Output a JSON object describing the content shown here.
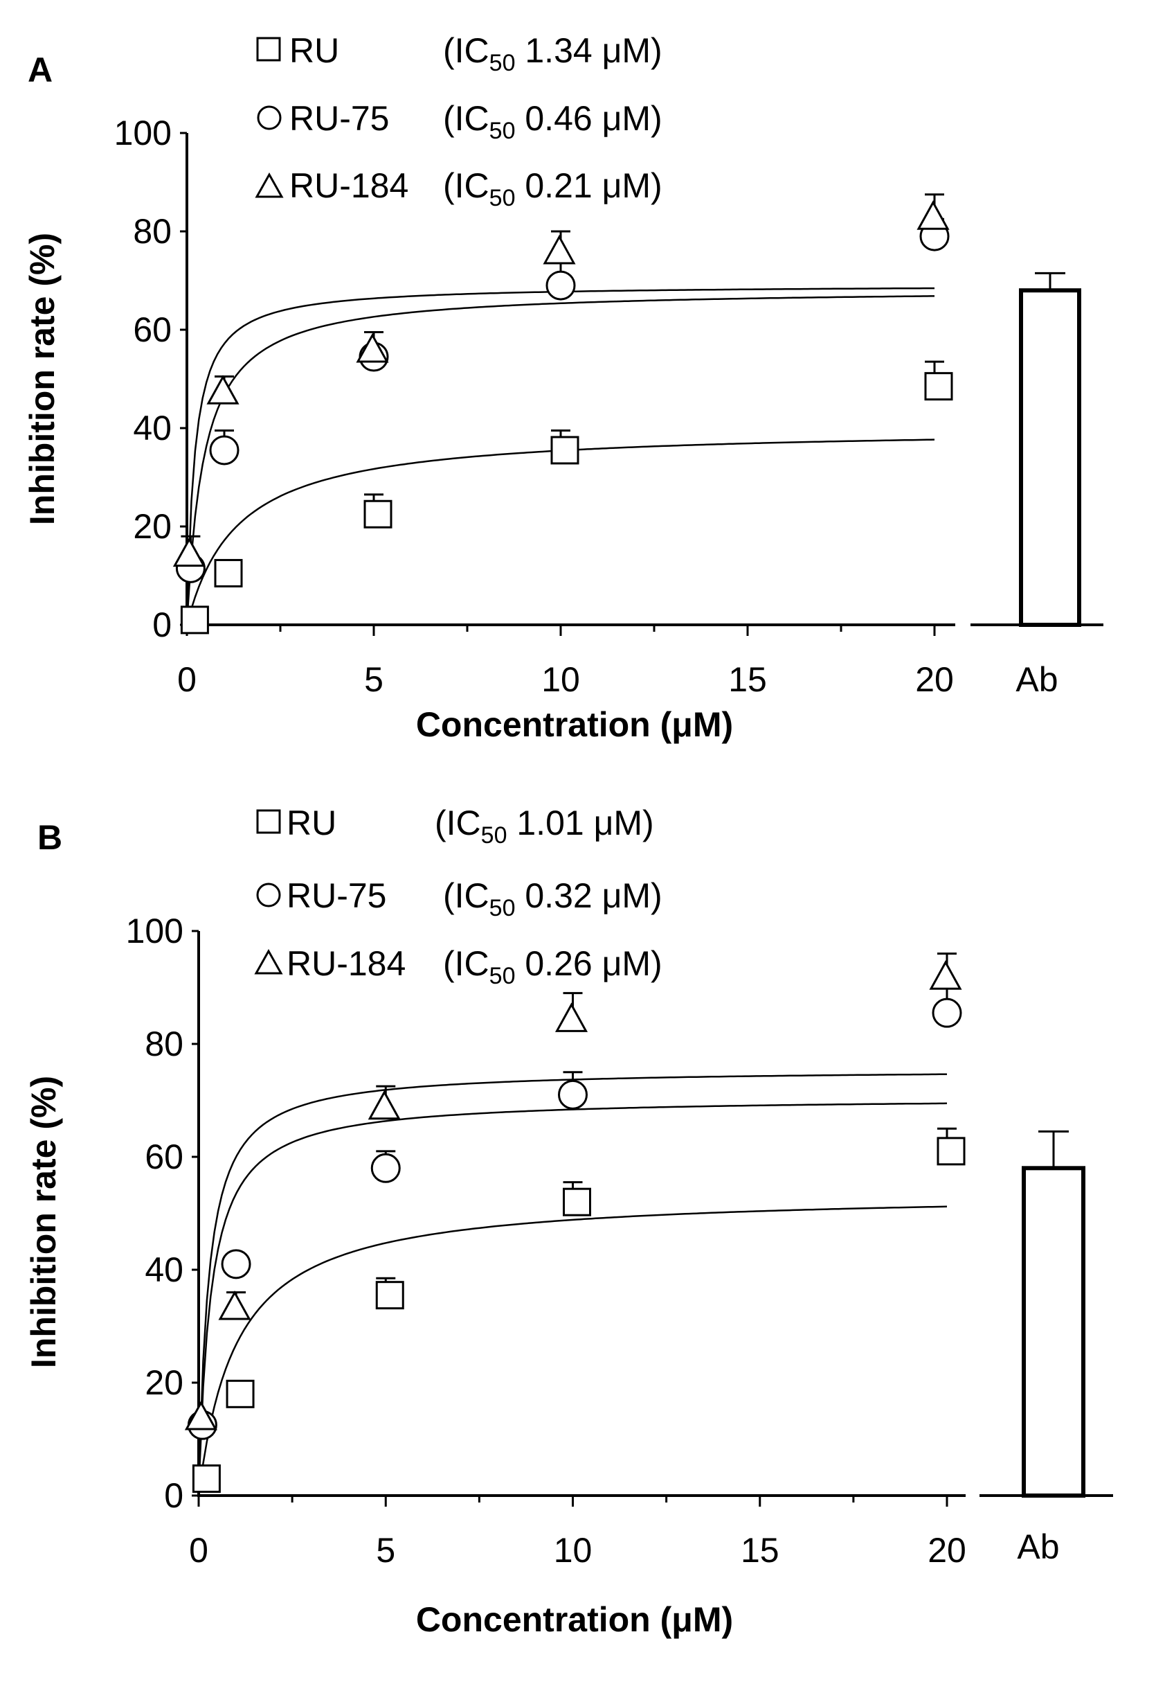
{
  "chart_data": [
    {
      "panel": "A",
      "type": "scatter",
      "xlabel": "Concentration (μM)",
      "ylabel": "Inhibition rate (%)",
      "xlim": [
        0,
        20
      ],
      "ylim": [
        0,
        100
      ],
      "x_ticks": [
        "0",
        "5",
        "10",
        "15",
        "20"
      ],
      "y_ticks": [
        "0",
        "20",
        "40",
        "60",
        "80",
        "100"
      ],
      "series": [
        {
          "name": "RU",
          "marker": "square",
          "ic50_label": "(IC",
          "ic50_sub": "50",
          "ic50_value": " 1.34 μM)",
          "ic50": 1.34,
          "x": [
            0.1,
            1,
            5,
            10,
            20
          ],
          "y": [
            1,
            10.5,
            22.5,
            35.5,
            48.5
          ],
          "err": [
            0,
            0,
            4,
            4,
            5
          ]
        },
        {
          "name": "RU-75",
          "marker": "circle",
          "ic50_label": "(IC",
          "ic50_sub": "50",
          "ic50_value": " 0.46 μM)",
          "ic50": 0.46,
          "x": [
            0.1,
            1,
            5,
            10,
            20
          ],
          "y": [
            11.5,
            35.5,
            54.5,
            69,
            79
          ],
          "err": [
            0,
            4,
            5,
            5,
            3.5
          ]
        },
        {
          "name": "RU-184",
          "marker": "triangle",
          "ic50_label": "(IC",
          "ic50_sub": "50",
          "ic50_value": " 0.21 μM)",
          "ic50": 0.21,
          "x": [
            0.1,
            1,
            5,
            10,
            20
          ],
          "y": [
            14,
            47,
            55.5,
            75.5,
            82.5
          ],
          "err": [
            4,
            3.5,
            4,
            4.5,
            5
          ]
        }
      ],
      "reference_bar": {
        "label": "Ab",
        "value": 68,
        "err": 3.5
      }
    },
    {
      "panel": "B",
      "type": "scatter",
      "xlabel": "Concentration (μM)",
      "ylabel": "Inhibition rate (%)",
      "xlim": [
        0,
        20
      ],
      "ylim": [
        0,
        100
      ],
      "x_ticks": [
        "0",
        "5",
        "10",
        "15",
        "20"
      ],
      "y_ticks": [
        "0",
        "20",
        "40",
        "60",
        "80",
        "100"
      ],
      "series": [
        {
          "name": "RU",
          "marker": "square",
          "ic50_label": "(IC",
          "ic50_sub": "50",
          "ic50_value": " 1.01 μM)",
          "ic50": 1.01,
          "x": [
            0.1,
            1,
            5,
            10,
            20
          ],
          "y": [
            3,
            18,
            35.5,
            52,
            61
          ],
          "err": [
            0,
            0,
            3,
            3.5,
            4
          ]
        },
        {
          "name": "RU-75",
          "marker": "circle",
          "ic50_label": "(IC",
          "ic50_sub": "50",
          "ic50_value": " 0.32 μM)",
          "ic50": 0.32,
          "x": [
            0.1,
            1,
            5,
            10,
            20
          ],
          "y": [
            12.5,
            41,
            58,
            71,
            85.5
          ],
          "err": [
            0,
            0,
            3,
            4,
            4.5
          ]
        },
        {
          "name": "RU-184",
          "marker": "triangle",
          "ic50_label": "(IC",
          "ic50_sub": "50",
          "ic50_value": " 0.26 μM)",
          "ic50": 0.26,
          "x": [
            0.1,
            1,
            5,
            10,
            20
          ],
          "y": [
            13.5,
            33,
            68.5,
            84,
            91.5
          ],
          "err": [
            0,
            3,
            4,
            5,
            4.5
          ]
        }
      ],
      "reference_bar": {
        "label": "Ab",
        "value": 58,
        "err": 6.5
      }
    }
  ]
}
